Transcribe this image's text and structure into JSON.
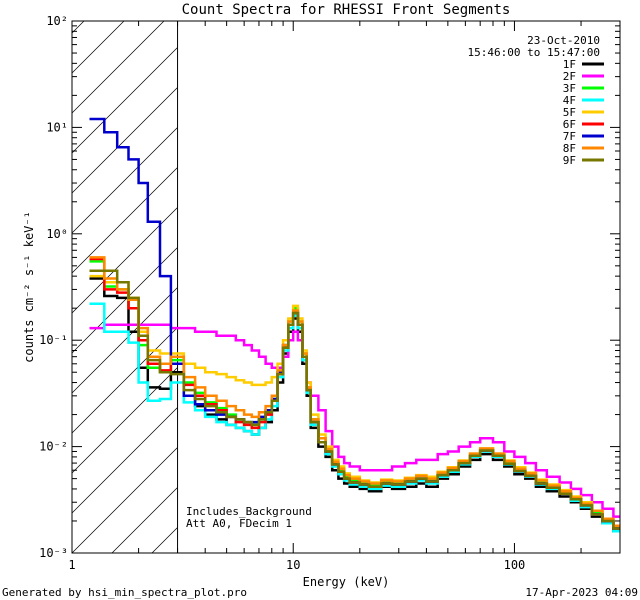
{
  "chart_data": {
    "type": "line",
    "title": "Count Spectra for RHESSI Front Segments",
    "xlabel": "Energy (keV)",
    "ylabel": "counts cm⁻² s⁻¹ keV⁻¹",
    "xscale": "log",
    "yscale": "log",
    "xlim": [
      1,
      300
    ],
    "ylim": [
      0.001,
      100
    ],
    "x_ticks": [
      {
        "value": 1,
        "label": "1"
      },
      {
        "value": 10,
        "label": "10"
      },
      {
        "value": 100,
        "label": "100"
      }
    ],
    "y_ticks": [
      {
        "value": 0.001,
        "label": "10⁻³"
      },
      {
        "value": 0.01,
        "label": "10⁻²"
      },
      {
        "value": 0.1,
        "label": "10⁻¹"
      },
      {
        "value": 1,
        "label": "10⁰"
      },
      {
        "value": 10,
        "label": "10¹"
      },
      {
        "value": 100,
        "label": "10²"
      }
    ],
    "date": "23-Oct-2010",
    "time_range": "15:46:00 to 15:47:00",
    "excluded_region_below_keV": 3,
    "annotations": [
      "Includes_Background",
      "Att A0, FDecim 1"
    ],
    "footer_left": "Generated by hsi_min_spectra_plot.pro",
    "footer_right": "17-Apr-2023 04:09",
    "series": [
      {
        "name": "1F",
        "color": "#000000",
        "x": [
          1.2,
          1.4,
          1.6,
          1.8,
          2.0,
          2.2,
          2.5,
          2.8,
          3.2,
          3.6,
          4.0,
          4.5,
          5.0,
          5.5,
          6.0,
          6.5,
          7.0,
          7.5,
          8.0,
          8.5,
          9.0,
          9.5,
          10.0,
          10.5,
          11.0,
          11.5,
          12.0,
          13,
          14,
          15,
          16,
          17,
          18,
          20,
          22,
          25,
          28,
          32,
          36,
          40,
          45,
          50,
          56,
          63,
          70,
          80,
          90,
          100,
          112,
          125,
          140,
          160,
          180,
          200,
          224,
          250,
          280
        ],
        "y": [
          0.38,
          0.26,
          0.25,
          0.12,
          0.055,
          0.036,
          0.035,
          0.05,
          0.03,
          0.024,
          0.02,
          0.018,
          0.016,
          0.015,
          0.014,
          0.013,
          0.015,
          0.017,
          0.022,
          0.04,
          0.075,
          0.12,
          0.16,
          0.12,
          0.06,
          0.03,
          0.015,
          0.01,
          0.008,
          0.006,
          0.005,
          0.0045,
          0.0042,
          0.004,
          0.0038,
          0.0042,
          0.004,
          0.0042,
          0.0045,
          0.0042,
          0.005,
          0.0055,
          0.0065,
          0.0075,
          0.0085,
          0.0075,
          0.0065,
          0.0055,
          0.005,
          0.0042,
          0.0038,
          0.0034,
          0.003,
          0.0026,
          0.0022,
          0.0019,
          0.0016
        ]
      },
      {
        "name": "2F",
        "color": "#ff00ff",
        "x": [
          1.2,
          1.4,
          1.6,
          1.8,
          2.0,
          2.2,
          2.5,
          2.8,
          3.2,
          3.6,
          4.0,
          4.5,
          5.0,
          5.5,
          6.0,
          6.5,
          7.0,
          7.5,
          8.0,
          8.5,
          9.0,
          9.5,
          10.0,
          10.5,
          11.0,
          11.5,
          12.0,
          13,
          14,
          15,
          16,
          17,
          18,
          20,
          22,
          25,
          28,
          32,
          36,
          40,
          45,
          50,
          56,
          63,
          70,
          80,
          90,
          100,
          112,
          125,
          140,
          160,
          180,
          200,
          224,
          250,
          280
        ],
        "y": [
          0.13,
          0.14,
          0.14,
          0.14,
          0.14,
          0.14,
          0.14,
          0.13,
          0.13,
          0.12,
          0.12,
          0.11,
          0.11,
          0.1,
          0.09,
          0.08,
          0.07,
          0.06,
          0.055,
          0.055,
          0.07,
          0.1,
          0.12,
          0.1,
          0.065,
          0.04,
          0.03,
          0.022,
          0.014,
          0.01,
          0.008,
          0.007,
          0.0065,
          0.006,
          0.006,
          0.006,
          0.0065,
          0.007,
          0.0075,
          0.0075,
          0.0085,
          0.009,
          0.01,
          0.011,
          0.012,
          0.011,
          0.009,
          0.008,
          0.007,
          0.006,
          0.0052,
          0.0046,
          0.004,
          0.0035,
          0.003,
          0.0026,
          0.0022
        ]
      },
      {
        "name": "3F",
        "color": "#00ff00",
        "x": [
          1.2,
          1.4,
          1.6,
          1.8,
          2.0,
          2.2,
          2.5,
          2.8,
          3.2,
          3.6,
          4.0,
          4.5,
          5.0,
          5.5,
          6.0,
          6.5,
          7.0,
          7.5,
          8.0,
          8.5,
          9.0,
          9.5,
          10.0,
          10.5,
          11.0,
          11.5,
          12.0,
          13,
          14,
          15,
          16,
          17,
          18,
          20,
          22,
          25,
          28,
          32,
          36,
          40,
          45,
          50,
          56,
          63,
          70,
          80,
          90,
          100,
          112,
          125,
          140,
          160,
          180,
          200,
          224,
          250,
          280
        ],
        "y": [
          0.55,
          0.32,
          0.3,
          0.2,
          0.09,
          0.055,
          0.05,
          0.065,
          0.04,
          0.032,
          0.026,
          0.023,
          0.02,
          0.018,
          0.017,
          0.016,
          0.018,
          0.021,
          0.028,
          0.05,
          0.09,
          0.15,
          0.2,
          0.15,
          0.075,
          0.036,
          0.018,
          0.012,
          0.0095,
          0.007,
          0.006,
          0.0052,
          0.0048,
          0.0045,
          0.0043,
          0.0046,
          0.0045,
          0.0048,
          0.005,
          0.0048,
          0.0055,
          0.006,
          0.007,
          0.0082,
          0.0092,
          0.0082,
          0.007,
          0.006,
          0.0054,
          0.0046,
          0.0041,
          0.0037,
          0.0032,
          0.0028,
          0.0024,
          0.002,
          0.0017
        ]
      },
      {
        "name": "4F",
        "color": "#00ffff",
        "x": [
          1.2,
          1.4,
          1.6,
          1.8,
          2.0,
          2.2,
          2.5,
          2.8,
          3.2,
          3.6,
          4.0,
          4.5,
          5.0,
          5.5,
          6.0,
          6.5,
          7.0,
          7.5,
          8.0,
          8.5,
          9.0,
          9.5,
          10.0,
          10.5,
          11.0,
          11.5,
          12.0,
          13,
          14,
          15,
          16,
          17,
          18,
          20,
          22,
          25,
          28,
          32,
          36,
          40,
          45,
          50,
          56,
          63,
          70,
          80,
          90,
          100,
          112,
          125,
          140,
          160,
          180,
          200,
          224,
          250,
          280
        ],
        "y": [
          0.22,
          0.12,
          0.12,
          0.095,
          0.04,
          0.027,
          0.028,
          0.04,
          0.026,
          0.022,
          0.019,
          0.017,
          0.016,
          0.015,
          0.014,
          0.013,
          0.015,
          0.018,
          0.024,
          0.045,
          0.08,
          0.13,
          0.17,
          0.13,
          0.065,
          0.032,
          0.016,
          0.011,
          0.0085,
          0.0065,
          0.0055,
          0.0048,
          0.0044,
          0.0042,
          0.004,
          0.0043,
          0.0042,
          0.0045,
          0.0048,
          0.0045,
          0.0052,
          0.0058,
          0.0068,
          0.008,
          0.009,
          0.008,
          0.0068,
          0.0058,
          0.0052,
          0.0044,
          0.004,
          0.0036,
          0.0031,
          0.0027,
          0.0023,
          0.0019,
          0.0016
        ]
      },
      {
        "name": "5F",
        "color": "#ffcc00",
        "x": [
          1.2,
          1.4,
          1.6,
          1.8,
          2.0,
          2.2,
          2.5,
          2.8,
          3.2,
          3.6,
          4.0,
          4.5,
          5.0,
          5.5,
          6.0,
          6.5,
          7.0,
          7.5,
          8.0,
          8.5,
          9.0,
          9.5,
          10.0,
          10.5,
          11.0,
          11.5,
          12.0,
          13,
          14,
          15,
          16,
          17,
          18,
          20,
          22,
          25,
          28,
          32,
          36,
          40,
          45,
          50,
          56,
          63,
          70,
          80,
          90,
          100,
          112,
          125,
          140,
          160,
          180,
          200,
          224,
          250,
          280
        ],
        "y": [
          0.4,
          0.35,
          0.35,
          0.25,
          0.12,
          0.08,
          0.075,
          0.075,
          0.06,
          0.055,
          0.05,
          0.048,
          0.045,
          0.042,
          0.04,
          0.038,
          0.038,
          0.04,
          0.045,
          0.06,
          0.1,
          0.16,
          0.21,
          0.16,
          0.08,
          0.04,
          0.02,
          0.013,
          0.01,
          0.0075,
          0.0065,
          0.0056,
          0.0052,
          0.0048,
          0.0046,
          0.0049,
          0.0048,
          0.0051,
          0.0054,
          0.0052,
          0.0058,
          0.0064,
          0.0074,
          0.0086,
          0.0096,
          0.0086,
          0.0074,
          0.0064,
          0.0057,
          0.0049,
          0.0044,
          0.0039,
          0.0034,
          0.003,
          0.0025,
          0.0021,
          0.0018
        ]
      },
      {
        "name": "6F",
        "color": "#ff0000",
        "x": [
          1.2,
          1.4,
          1.6,
          1.8,
          2.0,
          2.2,
          2.5,
          2.8,
          3.2,
          3.6,
          4.0,
          4.5,
          5.0,
          5.5,
          6.0,
          6.5,
          7.0,
          7.5,
          8.0,
          8.5,
          9.0,
          9.5,
          10.0,
          10.5,
          11.0,
          11.5,
          12.0,
          13,
          14,
          15,
          16,
          17,
          18,
          20,
          22,
          25,
          28,
          32,
          36,
          40,
          45,
          50,
          56,
          63,
          70,
          80,
          90,
          100,
          112,
          125,
          140,
          160,
          180,
          200,
          224,
          250,
          280
        ],
        "y": [
          0.58,
          0.3,
          0.28,
          0.2,
          0.1,
          0.06,
          0.052,
          0.06,
          0.038,
          0.03,
          0.025,
          0.022,
          0.019,
          0.017,
          0.016,
          0.015,
          0.017,
          0.02,
          0.027,
          0.048,
          0.085,
          0.14,
          0.18,
          0.14,
          0.07,
          0.034,
          0.017,
          0.011,
          0.009,
          0.0068,
          0.0058,
          0.005,
          0.0046,
          0.0044,
          0.0042,
          0.0045,
          0.0044,
          0.0047,
          0.005,
          0.0047,
          0.0054,
          0.006,
          0.007,
          0.0082,
          0.0092,
          0.0082,
          0.0069,
          0.0059,
          0.0053,
          0.0045,
          0.0041,
          0.0036,
          0.0032,
          0.0028,
          0.0023,
          0.002,
          0.0017
        ]
      },
      {
        "name": "7F",
        "color": "#0000cc",
        "x": [
          1.2,
          1.4,
          1.6,
          1.8,
          2.0,
          2.2,
          2.5,
          2.8,
          3.2,
          3.6,
          4.0,
          4.5,
          5.0,
          5.5,
          6.0,
          6.5,
          7.0,
          7.5,
          8.0,
          8.5,
          9.0,
          9.5,
          10.0,
          10.5,
          11.0,
          11.5,
          12.0,
          13,
          14,
          15,
          16,
          17,
          18,
          20,
          22,
          25,
          28,
          32,
          36,
          40,
          45,
          50,
          56,
          63,
          70,
          80,
          90,
          100,
          112,
          125,
          140,
          160,
          180,
          200,
          224,
          250,
          280
        ],
        "y": [
          12,
          9,
          6.5,
          5,
          3,
          1.3,
          0.4,
          0.06,
          0.03,
          0.025,
          0.022,
          0.02,
          0.019,
          0.018,
          0.017,
          0.017,
          0.019,
          0.022,
          0.028,
          0.05,
          0.09,
          0.14,
          0.18,
          0.14,
          0.07,
          0.034,
          0.017,
          0.011,
          0.009,
          0.0068,
          0.0058,
          0.005,
          0.0046,
          0.0044,
          0.0042,
          0.0045,
          0.0044,
          0.0047,
          0.005,
          0.0047,
          0.0054,
          0.006,
          0.007,
          0.0082,
          0.0092,
          0.0082,
          0.0069,
          0.0059,
          0.0053,
          0.0045,
          0.0041,
          0.0036,
          0.0032,
          0.0028,
          0.0023,
          0.002,
          0.0017
        ]
      },
      {
        "name": "8F",
        "color": "#ff8800",
        "x": [
          1.2,
          1.4,
          1.6,
          1.8,
          2.0,
          2.2,
          2.5,
          2.8,
          3.2,
          3.6,
          4.0,
          4.5,
          5.0,
          5.5,
          6.0,
          6.5,
          7.0,
          7.5,
          8.0,
          8.5,
          9.0,
          9.5,
          10.0,
          10.5,
          11.0,
          11.5,
          12.0,
          13,
          14,
          15,
          16,
          17,
          18,
          20,
          22,
          25,
          28,
          32,
          36,
          40,
          45,
          50,
          56,
          63,
          70,
          80,
          90,
          100,
          112,
          125,
          140,
          160,
          180,
          200,
          224,
          250,
          280
        ],
        "y": [
          0.6,
          0.38,
          0.3,
          0.24,
          0.13,
          0.07,
          0.06,
          0.07,
          0.045,
          0.036,
          0.03,
          0.027,
          0.024,
          0.022,
          0.02,
          0.019,
          0.021,
          0.024,
          0.03,
          0.052,
          0.09,
          0.15,
          0.19,
          0.15,
          0.075,
          0.036,
          0.018,
          0.012,
          0.0095,
          0.0072,
          0.0062,
          0.0054,
          0.005,
          0.0047,
          0.0045,
          0.0048,
          0.0047,
          0.005,
          0.0053,
          0.005,
          0.0057,
          0.0063,
          0.0073,
          0.0086,
          0.0096,
          0.0086,
          0.0073,
          0.0062,
          0.0056,
          0.0048,
          0.0043,
          0.0038,
          0.0033,
          0.0029,
          0.0025,
          0.0021,
          0.0018
        ]
      },
      {
        "name": "9F",
        "color": "#777700",
        "x": [
          1.2,
          1.4,
          1.6,
          1.8,
          2.0,
          2.2,
          2.5,
          2.8,
          3.2,
          3.6,
          4.0,
          4.5,
          5.0,
          5.5,
          6.0,
          6.5,
          7.0,
          7.5,
          8.0,
          8.5,
          9.0,
          9.5,
          10.0,
          10.5,
          11.0,
          11.5,
          12.0,
          13,
          14,
          15,
          16,
          17,
          18,
          20,
          22,
          25,
          28,
          32,
          36,
          40,
          45,
          50,
          56,
          63,
          70,
          80,
          90,
          100,
          112,
          125,
          140,
          160,
          180,
          200,
          224,
          250,
          280
        ],
        "y": [
          0.45,
          0.45,
          0.35,
          0.25,
          0.11,
          0.065,
          0.05,
          0.048,
          0.034,
          0.028,
          0.024,
          0.021,
          0.019,
          0.018,
          0.017,
          0.016,
          0.018,
          0.021,
          0.027,
          0.048,
          0.085,
          0.14,
          0.18,
          0.14,
          0.07,
          0.034,
          0.017,
          0.011,
          0.009,
          0.0068,
          0.0058,
          0.005,
          0.0046,
          0.0044,
          0.0042,
          0.0045,
          0.0044,
          0.0047,
          0.005,
          0.0047,
          0.0054,
          0.006,
          0.007,
          0.0082,
          0.0092,
          0.0082,
          0.0069,
          0.0059,
          0.0053,
          0.0045,
          0.0041,
          0.0036,
          0.0032,
          0.0028,
          0.0023,
          0.002,
          0.0017
        ]
      }
    ]
  }
}
